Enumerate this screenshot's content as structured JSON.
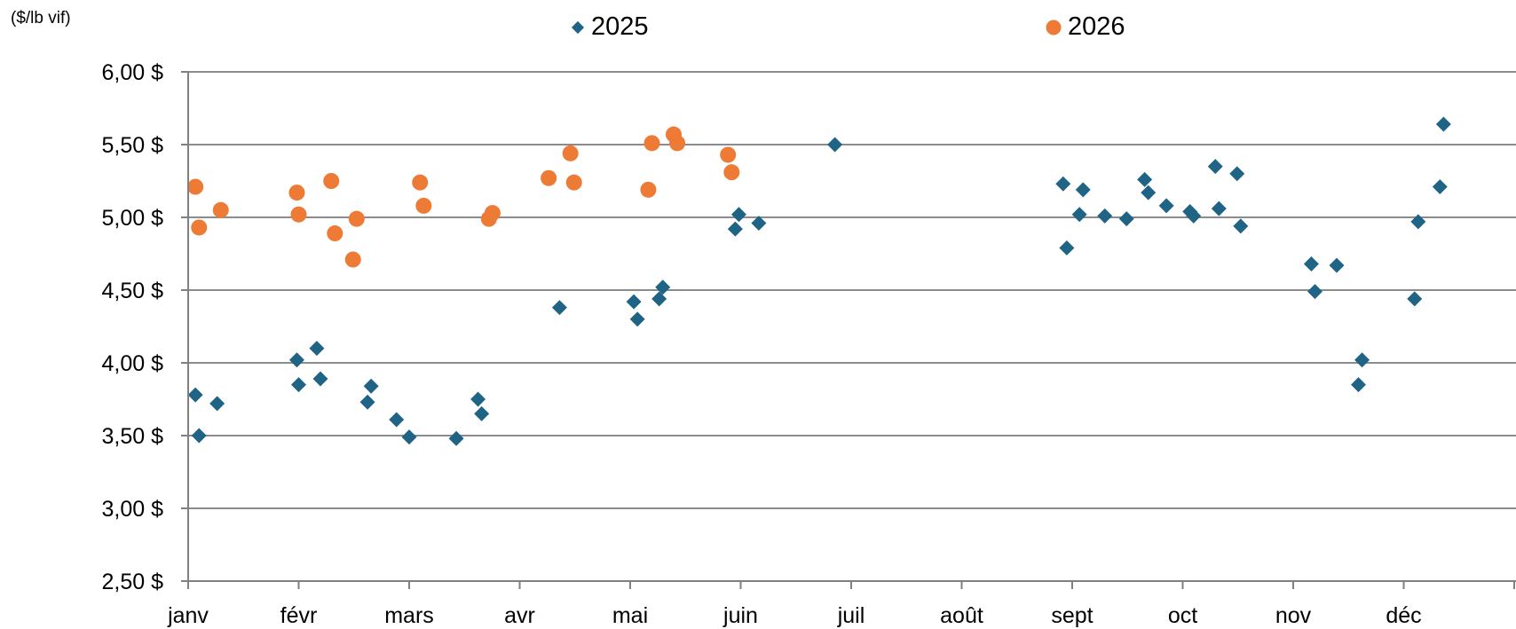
{
  "chart_data": {
    "type": "scatter",
    "unit_label": "($/lb vif)",
    "title": "",
    "xlabel": "",
    "ylabel": "",
    "x_axis": {
      "type": "month",
      "tick_labels": [
        "janv",
        "févr",
        "mars",
        "avr",
        "mai",
        "juin",
        "juil",
        "août",
        "sept",
        "oct",
        "nov",
        "déc"
      ],
      "range_months": [
        0,
        12
      ]
    },
    "y_axis": {
      "range": [
        2.5,
        6.0
      ],
      "ticks": [
        2.5,
        3.0,
        3.5,
        4.0,
        4.5,
        5.0,
        5.5,
        6.0
      ],
      "tick_labels": [
        "2,50 $",
        "3,00 $",
        "3,50 $",
        "4,00 $",
        "4,50 $",
        "5,00 $",
        "5,50 $",
        "6,00 $"
      ]
    },
    "grid": "horizontal",
    "legend_position": "top",
    "colors": {
      "2025": "#1f6385",
      "2026": "#ed7a35",
      "grid": "#8c8c8c",
      "axis": "#808080"
    },
    "series": [
      {
        "name": "2025",
        "marker": "diamond",
        "points": [
          {
            "x": "2025-01-03",
            "y": 3.78
          },
          {
            "x": "2025-01-04",
            "y": 3.5
          },
          {
            "x": "2025-01-09",
            "y": 3.72
          },
          {
            "x": "2025-01-31",
            "y": 4.02
          },
          {
            "x": "2025-02-01",
            "y": 3.85
          },
          {
            "x": "2025-02-06",
            "y": 4.1
          },
          {
            "x": "2025-02-07",
            "y": 3.89
          },
          {
            "x": "2025-02-20",
            "y": 3.73
          },
          {
            "x": "2025-02-21",
            "y": 3.84
          },
          {
            "x": "2025-02-28",
            "y": 3.61
          },
          {
            "x": "2025-03-01",
            "y": 3.49
          },
          {
            "x": "2025-03-14",
            "y": 3.48
          },
          {
            "x": "2025-03-20",
            "y": 3.75
          },
          {
            "x": "2025-03-21",
            "y": 3.65
          },
          {
            "x": "2025-04-12",
            "y": 4.38
          },
          {
            "x": "2025-05-02",
            "y": 4.42
          },
          {
            "x": "2025-05-03",
            "y": 4.3
          },
          {
            "x": "2025-05-09",
            "y": 4.44
          },
          {
            "x": "2025-05-10",
            "y": 4.52
          },
          {
            "x": "2025-05-30",
            "y": 4.92
          },
          {
            "x": "2025-05-31",
            "y": 5.02
          },
          {
            "x": "2025-06-06",
            "y": 4.96
          },
          {
            "x": "2025-06-27",
            "y": 5.5
          },
          {
            "x": "2025-08-29",
            "y": 5.23
          },
          {
            "x": "2025-08-30",
            "y": 4.79
          },
          {
            "x": "2025-09-03",
            "y": 5.02
          },
          {
            "x": "2025-09-04",
            "y": 5.19
          },
          {
            "x": "2025-09-10",
            "y": 5.01
          },
          {
            "x": "2025-09-16",
            "y": 4.99
          },
          {
            "x": "2025-09-21",
            "y": 5.26
          },
          {
            "x": "2025-09-22",
            "y": 5.17
          },
          {
            "x": "2025-09-27",
            "y": 5.08
          },
          {
            "x": "2025-10-03",
            "y": 5.04
          },
          {
            "x": "2025-10-04",
            "y": 5.01
          },
          {
            "x": "2025-10-10",
            "y": 5.35
          },
          {
            "x": "2025-10-11",
            "y": 5.06
          },
          {
            "x": "2025-10-16",
            "y": 5.3
          },
          {
            "x": "2025-10-17",
            "y": 4.94
          },
          {
            "x": "2025-11-06",
            "y": 4.68
          },
          {
            "x": "2025-11-07",
            "y": 4.49
          },
          {
            "x": "2025-11-13",
            "y": 4.67
          },
          {
            "x": "2025-11-19",
            "y": 3.85
          },
          {
            "x": "2025-11-20",
            "y": 4.02
          },
          {
            "x": "2025-12-04",
            "y": 4.44
          },
          {
            "x": "2025-12-05",
            "y": 4.97
          },
          {
            "x": "2025-12-11",
            "y": 5.21
          },
          {
            "x": "2025-12-12",
            "y": 5.64
          }
        ]
      },
      {
        "name": "2026",
        "marker": "circle",
        "points": [
          {
            "x": "2026-01-03",
            "y": 5.21
          },
          {
            "x": "2026-01-04",
            "y": 4.93
          },
          {
            "x": "2026-01-10",
            "y": 5.05
          },
          {
            "x": "2026-01-31",
            "y": 5.17
          },
          {
            "x": "2026-02-01",
            "y": 5.02
          },
          {
            "x": "2026-02-10",
            "y": 5.25
          },
          {
            "x": "2026-02-11",
            "y": 4.89
          },
          {
            "x": "2026-02-16",
            "y": 4.71
          },
          {
            "x": "2026-02-17",
            "y": 4.99
          },
          {
            "x": "2026-03-04",
            "y": 5.24
          },
          {
            "x": "2026-03-05",
            "y": 5.08
          },
          {
            "x": "2026-03-23",
            "y": 4.99
          },
          {
            "x": "2026-03-24",
            "y": 5.03
          },
          {
            "x": "2026-04-09",
            "y": 5.27
          },
          {
            "x": "2026-04-15",
            "y": 5.44
          },
          {
            "x": "2026-04-16",
            "y": 5.24
          },
          {
            "x": "2026-05-06",
            "y": 5.19
          },
          {
            "x": "2026-05-07",
            "y": 5.51
          },
          {
            "x": "2026-05-13",
            "y": 5.57
          },
          {
            "x": "2026-05-14",
            "y": 5.51
          },
          {
            "x": "2026-05-28",
            "y": 5.43
          },
          {
            "x": "2026-05-29",
            "y": 5.31
          }
        ]
      }
    ]
  }
}
